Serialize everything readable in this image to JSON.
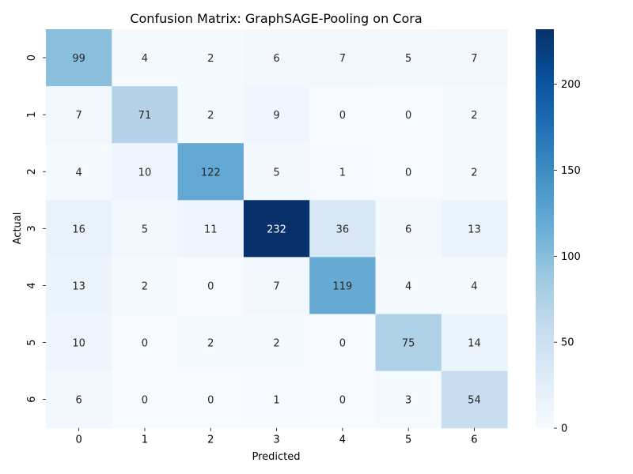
{
  "chart_data": {
    "type": "heatmap",
    "title": "Confusion Matrix: GraphSAGE-Pooling on Cora",
    "xlabel": "Predicted",
    "ylabel": "Actual",
    "x_categories": [
      "0",
      "1",
      "2",
      "3",
      "4",
      "5",
      "6"
    ],
    "y_categories": [
      "0",
      "1",
      "2",
      "3",
      "4",
      "5",
      "6"
    ],
    "values": [
      [
        99,
        4,
        2,
        6,
        7,
        5,
        7
      ],
      [
        7,
        71,
        2,
        9,
        0,
        0,
        2
      ],
      [
        4,
        10,
        122,
        5,
        1,
        0,
        2
      ],
      [
        16,
        5,
        11,
        232,
        36,
        6,
        13
      ],
      [
        13,
        2,
        0,
        7,
        119,
        4,
        4
      ],
      [
        10,
        0,
        2,
        2,
        0,
        75,
        14
      ],
      [
        6,
        0,
        0,
        1,
        0,
        3,
        54
      ]
    ],
    "colormap": "Blues",
    "colorbar": {
      "range": [
        0,
        232
      ],
      "ticks": [
        0,
        50,
        100,
        150,
        200
      ]
    },
    "grid": false
  }
}
